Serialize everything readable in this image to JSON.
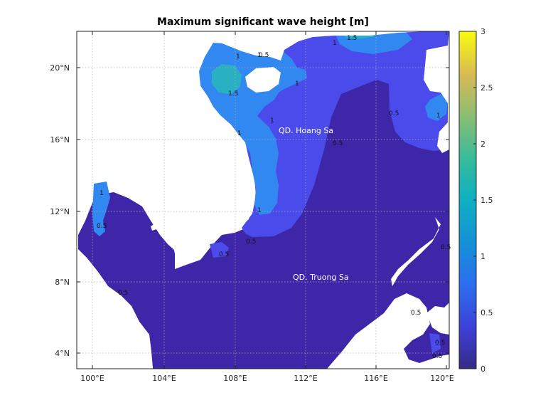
{
  "title": "Maximum significant wave height [m]",
  "x_ticks": [
    "100°E",
    "104°E",
    "108°E",
    "112°E",
    "116°E",
    "120°E"
  ],
  "y_ticks": [
    "20°N",
    "16°N",
    "12°N",
    "8°N",
    "4°N"
  ],
  "colorbar": {
    "ticks": [
      "3",
      "2.5",
      "2",
      "1.5",
      "1",
      "0.5",
      "0"
    ],
    "colormap": "parula",
    "range": [
      0,
      3
    ]
  },
  "places": {
    "hoang_sa": "QD. Hoang Sa",
    "truong_sa": "QD. Truong Sa"
  },
  "contour_labels": {
    "l1": "1",
    "l2": "1",
    "l3": "1",
    "l4": "1",
    "l5": "1",
    "l6": "1",
    "l7": "1",
    "l8": "1",
    "l9": "1.5",
    "l10": "1.5",
    "l11": "0.5",
    "l12": "0.5",
    "l13": "0.5",
    "l14": "0.5",
    "l15": "0.5",
    "l16": "0.5",
    "l17": "0.5",
    "l18": "0.5",
    "l19": "0.5",
    "l20": "0.5",
    "l21": "0.5",
    "l22": "1"
  },
  "colors": {
    "sea_low": "#3e26a8",
    "sea_mid": "#4a4bea",
    "sea_1m": "#3188f0",
    "sea_15m": "#2ab0c3",
    "land": "#ffffff"
  }
}
